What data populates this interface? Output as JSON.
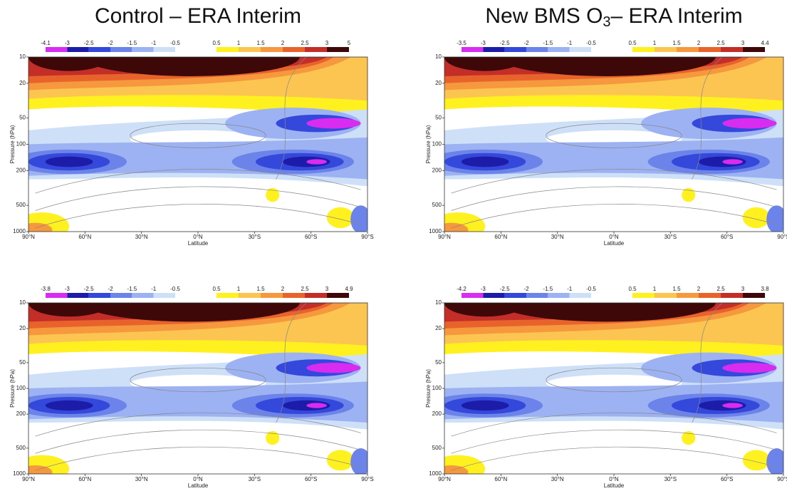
{
  "column_titles": [
    {
      "parts": [
        "Control – ERA Interim"
      ]
    },
    {
      "parts": [
        "New BMS O",
        "3",
        "– ERA Interim"
      ]
    }
  ],
  "chart_data": [
    {
      "type": "contour",
      "xlabel": "Latitude",
      "ylabel": "Pressure (hPa)",
      "xlim": [
        90,
        -90
      ],
      "xticks": [
        {
          "value": 90,
          "label": "90°N"
        },
        {
          "value": 60,
          "label": "60°N"
        },
        {
          "value": 30,
          "label": "30°N"
        },
        {
          "value": 0,
          "label": "0°N"
        },
        {
          "value": -30,
          "label": "30°S"
        },
        {
          "value": -60,
          "label": "60°S"
        },
        {
          "value": -90,
          "label": "90°S"
        }
      ],
      "ylim": [
        1000,
        10
      ],
      "log_y": true,
      "yticks": [
        10,
        20,
        50,
        100,
        200,
        500,
        1000
      ],
      "colorbar": {
        "neg_levels": [
          -4.1,
          -3,
          -2.5,
          -2,
          -1.5,
          -1,
          -0.5
        ],
        "neg_colors": [
          "#d82cf0",
          "#1c1ca8",
          "#3448dc",
          "#6c84ea",
          "#9db2f2",
          "#cde0f8"
        ],
        "pos_levels": [
          0.5,
          1,
          1.5,
          2,
          2.5,
          3,
          5
        ],
        "pos_colors": [
          "#fff020",
          "#fcc450",
          "#f6983e",
          "#e8622c",
          "#c42e28",
          "#3e0808"
        ]
      }
    },
    {
      "type": "contour",
      "xlabel": "Latitude",
      "ylabel": "Pressure (hPa)",
      "xlim": [
        90,
        -90
      ],
      "xticks": [
        {
          "value": 90,
          "label": "90°N"
        },
        {
          "value": 60,
          "label": "60°N"
        },
        {
          "value": 30,
          "label": "30°N"
        },
        {
          "value": 0,
          "label": "0°N"
        },
        {
          "value": -30,
          "label": "30°S"
        },
        {
          "value": -60,
          "label": "60°S"
        },
        {
          "value": -90,
          "label": "90°S"
        }
      ],
      "ylim": [
        1000,
        10
      ],
      "log_y": true,
      "yticks": [
        10,
        20,
        50,
        100,
        200,
        500,
        1000
      ],
      "colorbar": {
        "neg_levels": [
          -3.5,
          -3,
          -2.5,
          -2,
          -1.5,
          -1,
          -0.5
        ],
        "neg_colors": [
          "#d82cf0",
          "#1c1ca8",
          "#3448dc",
          "#6c84ea",
          "#9db2f2",
          "#cde0f8"
        ],
        "pos_levels": [
          0.5,
          1,
          1.5,
          2,
          2.5,
          3,
          4.4
        ],
        "pos_colors": [
          "#fff020",
          "#fcc450",
          "#f6983e",
          "#e8622c",
          "#c42e28",
          "#3e0808"
        ]
      }
    },
    {
      "type": "contour",
      "xlabel": "Latitude",
      "ylabel": "Pressure (hPa)",
      "xlim": [
        90,
        -90
      ],
      "xticks": [
        {
          "value": 90,
          "label": "90°N"
        },
        {
          "value": 60,
          "label": "60°N"
        },
        {
          "value": 30,
          "label": "30°N"
        },
        {
          "value": 0,
          "label": "0°N"
        },
        {
          "value": -30,
          "label": "30°S"
        },
        {
          "value": -60,
          "label": "60°S"
        },
        {
          "value": -90,
          "label": "90°S"
        }
      ],
      "ylim": [
        1000,
        10
      ],
      "log_y": true,
      "yticks": [
        10,
        20,
        50,
        100,
        200,
        500,
        1000
      ],
      "colorbar": {
        "neg_levels": [
          -3.8,
          -3,
          -2.5,
          -2,
          -1.5,
          -1,
          -0.5
        ],
        "neg_colors": [
          "#d82cf0",
          "#1c1ca8",
          "#3448dc",
          "#6c84ea",
          "#9db2f2",
          "#cde0f8"
        ],
        "pos_levels": [
          0.5,
          1,
          1.5,
          2,
          2.5,
          3,
          4.9
        ],
        "pos_colors": [
          "#fff020",
          "#fcc450",
          "#f6983e",
          "#e8622c",
          "#c42e28",
          "#3e0808"
        ]
      }
    },
    {
      "type": "contour",
      "xlabel": "Latitude",
      "ylabel": "Pressure (hPa)",
      "xlim": [
        90,
        -90
      ],
      "xticks": [
        {
          "value": 90,
          "label": "90°N"
        },
        {
          "value": 60,
          "label": "60°N"
        },
        {
          "value": 30,
          "label": "30°N"
        },
        {
          "value": 0,
          "label": "0°N"
        },
        {
          "value": -30,
          "label": "30°S"
        },
        {
          "value": -60,
          "label": "60°S"
        },
        {
          "value": -90,
          "label": "90°S"
        }
      ],
      "ylim": [
        1000,
        10
      ],
      "log_y": true,
      "yticks": [
        10,
        20,
        50,
        100,
        200,
        500,
        1000
      ],
      "colorbar": {
        "neg_levels": [
          -4.2,
          -3,
          -2.5,
          -2,
          -1.5,
          -1,
          -0.5
        ],
        "neg_colors": [
          "#d82cf0",
          "#1c1ca8",
          "#3448dc",
          "#6c84ea",
          "#9db2f2",
          "#cde0f8"
        ],
        "pos_levels": [
          0.5,
          1,
          1.5,
          2,
          2.5,
          3,
          3.8
        ],
        "pos_colors": [
          "#fff020",
          "#fcc450",
          "#f6983e",
          "#e8622c",
          "#c42e28",
          "#3e0808"
        ]
      }
    }
  ]
}
